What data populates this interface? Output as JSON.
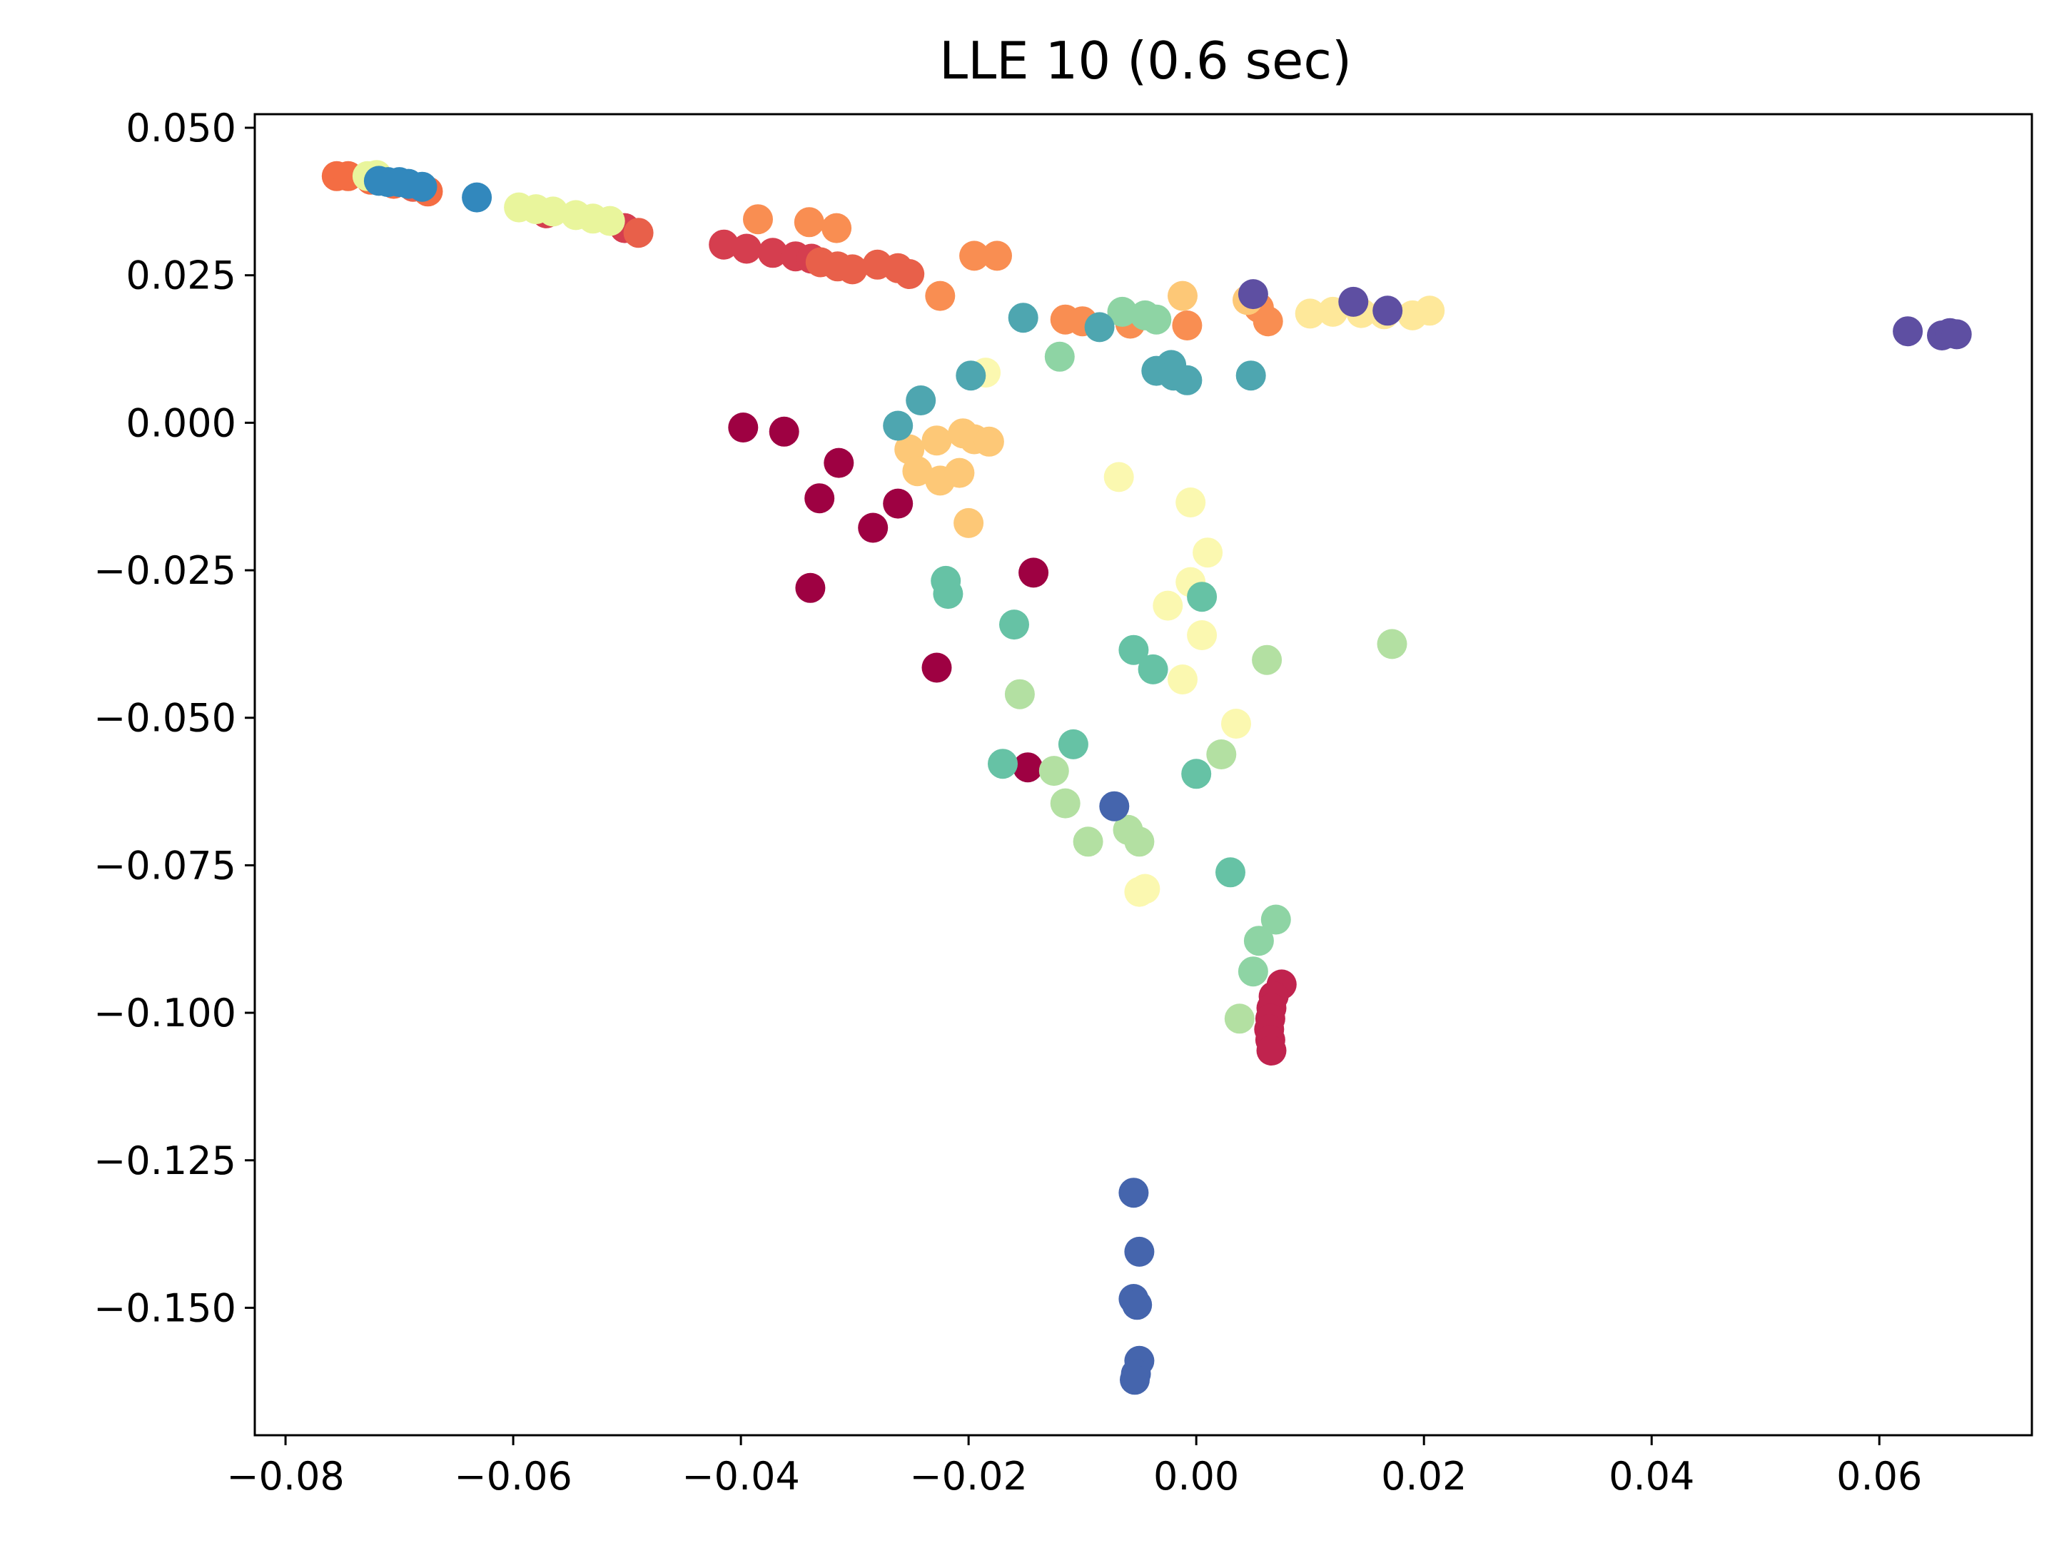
{
  "chart_data": {
    "type": "scatter",
    "title": "LLE 10 (0.6 sec)",
    "xlabel": "",
    "ylabel": "",
    "xlim": [
      -0.0827,
      0.0734
    ],
    "ylim": [
      -0.1716,
      0.0523
    ],
    "grid": false,
    "legend": "none",
    "x_ticks": [
      -0.08,
      -0.06,
      -0.04,
      -0.02,
      0.0,
      0.02,
      0.04,
      0.06
    ],
    "x_tick_labels": [
      "−0.08",
      "−0.06",
      "−0.04",
      "−0.02",
      "0.00",
      "0.02",
      "0.04",
      "0.06"
    ],
    "y_ticks": [
      0.05,
      0.025,
      0.0,
      -0.025,
      -0.05,
      -0.075,
      -0.1,
      -0.125,
      -0.15
    ],
    "y_tick_labels": [
      "0.050",
      "0.025",
      "0.000",
      "−0.025",
      "−0.050",
      "−0.075",
      "−0.100",
      "−0.125",
      "−0.150"
    ],
    "colormap": "Spectral",
    "points": [
      {
        "x": -0.0398,
        "y": -0.0008,
        "color": "#9e0142"
      },
      {
        "x": -0.0362,
        "y": -0.0015,
        "color": "#9e0142"
      },
      {
        "x": -0.0314,
        "y": -0.0068,
        "color": "#9e0142"
      },
      {
        "x": -0.0331,
        "y": -0.0128,
        "color": "#9e0142"
      },
      {
        "x": -0.0262,
        "y": -0.0137,
        "color": "#9e0142"
      },
      {
        "x": -0.0284,
        "y": -0.0178,
        "color": "#9e0142"
      },
      {
        "x": -0.0339,
        "y": -0.028,
        "color": "#9e0142"
      },
      {
        "x": -0.0143,
        "y": -0.0254,
        "color": "#9e0142"
      },
      {
        "x": -0.0228,
        "y": -0.0415,
        "color": "#9e0142"
      },
      {
        "x": -0.0148,
        "y": -0.0584,
        "color": "#9e0142"
      },
      {
        "x": 0.0075,
        "y": -0.0952,
        "color": "#c0234e"
      },
      {
        "x": 0.0068,
        "y": -0.0972,
        "color": "#c0234e"
      },
      {
        "x": 0.0066,
        "y": -0.0992,
        "color": "#c0234e"
      },
      {
        "x": 0.0065,
        "y": -0.101,
        "color": "#c0234e"
      },
      {
        "x": 0.0064,
        "y": -0.1028,
        "color": "#c0234e"
      },
      {
        "x": 0.0065,
        "y": -0.1046,
        "color": "#c0234e"
      },
      {
        "x": 0.0066,
        "y": -0.1064,
        "color": "#c0234e"
      },
      {
        "x": -0.0571,
        "y": 0.0355,
        "color": "#d53e4f"
      },
      {
        "x": -0.0502,
        "y": 0.033,
        "color": "#d53e4f"
      },
      {
        "x": -0.0415,
        "y": 0.0302,
        "color": "#d53e4f"
      },
      {
        "x": -0.0395,
        "y": 0.0295,
        "color": "#d53e4f"
      },
      {
        "x": -0.0372,
        "y": 0.0288,
        "color": "#d53e4f"
      },
      {
        "x": -0.0352,
        "y": 0.0282,
        "color": "#d53e4f"
      },
      {
        "x": -0.0338,
        "y": 0.0278,
        "color": "#d53e4f"
      },
      {
        "x": -0.0688,
        "y": 0.04,
        "color": "#e8604a"
      },
      {
        "x": -0.049,
        "y": 0.0322,
        "color": "#e8604a"
      },
      {
        "x": -0.033,
        "y": 0.0272,
        "color": "#e8604a"
      },
      {
        "x": -0.0315,
        "y": 0.0265,
        "color": "#e8604a"
      },
      {
        "x": -0.0302,
        "y": 0.026,
        "color": "#e8604a"
      },
      {
        "x": -0.028,
        "y": 0.0268,
        "color": "#e8604a"
      },
      {
        "x": -0.0262,
        "y": 0.0262,
        "color": "#e8604a"
      },
      {
        "x": -0.0252,
        "y": 0.0252,
        "color": "#e8604a"
      },
      {
        "x": -0.0755,
        "y": 0.0418,
        "color": "#f46d43"
      },
      {
        "x": -0.0745,
        "y": 0.0418,
        "color": "#f46d43"
      },
      {
        "x": -0.0725,
        "y": 0.0412,
        "color": "#f46d43"
      },
      {
        "x": -0.0705,
        "y": 0.0405,
        "color": "#f46d43"
      },
      {
        "x": -0.0675,
        "y": 0.0392,
        "color": "#f46d43"
      },
      {
        "x": -0.0385,
        "y": 0.0345,
        "color": "#f98e52"
      },
      {
        "x": -0.034,
        "y": 0.034,
        "color": "#f98e52"
      },
      {
        "x": -0.0316,
        "y": 0.033,
        "color": "#f98e52"
      },
      {
        "x": -0.0195,
        "y": 0.0283,
        "color": "#f98e52"
      },
      {
        "x": -0.0175,
        "y": 0.0283,
        "color": "#f98e52"
      },
      {
        "x": -0.0225,
        "y": 0.0215,
        "color": "#f98e52"
      },
      {
        "x": -0.0115,
        "y": 0.0175,
        "color": "#f98e52"
      },
      {
        "x": -0.01,
        "y": 0.0172,
        "color": "#f98e52"
      },
      {
        "x": -0.0058,
        "y": 0.0168,
        "color": "#f98e52"
      },
      {
        "x": -0.0008,
        "y": 0.0165,
        "color": "#f98e52"
      },
      {
        "x": 0.0063,
        "y": 0.0172,
        "color": "#f98e52"
      },
      {
        "x": 0.0055,
        "y": 0.0195,
        "color": "#f98e52"
      },
      {
        "x": -0.0252,
        "y": -0.0045,
        "color": "#fdc877"
      },
      {
        "x": -0.0228,
        "y": -0.003,
        "color": "#fdc877"
      },
      {
        "x": -0.0205,
        "y": -0.0018,
        "color": "#fdc877"
      },
      {
        "x": -0.0195,
        "y": -0.0028,
        "color": "#fdc877"
      },
      {
        "x": -0.0182,
        "y": -0.0032,
        "color": "#fdc877"
      },
      {
        "x": -0.0245,
        "y": -0.0082,
        "color": "#fdc877"
      },
      {
        "x": -0.0225,
        "y": -0.0098,
        "color": "#fdc877"
      },
      {
        "x": -0.0208,
        "y": -0.0085,
        "color": "#fdc877"
      },
      {
        "x": -0.02,
        "y": -0.017,
        "color": "#fdc877"
      },
      {
        "x": -0.0012,
        "y": 0.0215,
        "color": "#fdc877"
      },
      {
        "x": 0.0045,
        "y": 0.0208,
        "color": "#fdc877"
      },
      {
        "x": 0.01,
        "y": 0.0185,
        "color": "#fee89a"
      },
      {
        "x": 0.012,
        "y": 0.0188,
        "color": "#fee89a"
      },
      {
        "x": 0.0145,
        "y": 0.0186,
        "color": "#fee89a"
      },
      {
        "x": 0.0165,
        "y": 0.0184,
        "color": "#fee89a"
      },
      {
        "x": 0.019,
        "y": 0.0182,
        "color": "#fee89a"
      },
      {
        "x": 0.0205,
        "y": 0.019,
        "color": "#fee89a"
      },
      {
        "x": -0.0185,
        "y": 0.0085,
        "color": "#fbf8b0"
      },
      {
        "x": -0.0068,
        "y": -0.0092,
        "color": "#fbf8b0"
      },
      {
        "x": -0.0005,
        "y": -0.0135,
        "color": "#fbf8b0"
      },
      {
        "x": 0.001,
        "y": -0.022,
        "color": "#fbf8b0"
      },
      {
        "x": -0.0005,
        "y": -0.027,
        "color": "#fbf8b0"
      },
      {
        "x": -0.0025,
        "y": -0.031,
        "color": "#fbf8b0"
      },
      {
        "x": 0.0005,
        "y": -0.036,
        "color": "#fbf8b0"
      },
      {
        "x": -0.0012,
        "y": -0.0435,
        "color": "#fbf8b0"
      },
      {
        "x": 0.0035,
        "y": -0.051,
        "color": "#fbf8b0"
      },
      {
        "x": -0.0045,
        "y": -0.079,
        "color": "#fbf8b0"
      },
      {
        "x": -0.005,
        "y": -0.0795,
        "color": "#fbf8b0"
      },
      {
        "x": -0.0595,
        "y": 0.0365,
        "color": "#e9f59c"
      },
      {
        "x": -0.058,
        "y": 0.0362,
        "color": "#e9f59c"
      },
      {
        "x": -0.0565,
        "y": 0.0358,
        "color": "#e9f59c"
      },
      {
        "x": -0.0545,
        "y": 0.0352,
        "color": "#e9f59c"
      },
      {
        "x": -0.053,
        "y": 0.0346,
        "color": "#e9f59c"
      },
      {
        "x": -0.0515,
        "y": 0.0342,
        "color": "#e9f59c"
      },
      {
        "x": -0.0728,
        "y": 0.0418,
        "color": "#e9f59c"
      },
      {
        "x": -0.072,
        "y": 0.042,
        "color": "#e9f59c"
      },
      {
        "x": -0.0155,
        "y": -0.046,
        "color": "#b3e0a2"
      },
      {
        "x": -0.0125,
        "y": -0.059,
        "color": "#b3e0a2"
      },
      {
        "x": -0.0115,
        "y": -0.0645,
        "color": "#b3e0a2"
      },
      {
        "x": -0.0095,
        "y": -0.071,
        "color": "#b3e0a2"
      },
      {
        "x": -0.006,
        "y": -0.069,
        "color": "#b3e0a2"
      },
      {
        "x": -0.005,
        "y": -0.071,
        "color": "#b3e0a2"
      },
      {
        "x": 0.0022,
        "y": -0.0562,
        "color": "#b3e0a2"
      },
      {
        "x": 0.0062,
        "y": -0.0402,
        "color": "#b3e0a2"
      },
      {
        "x": 0.0172,
        "y": -0.0375,
        "color": "#b3e0a2"
      },
      {
        "x": 0.0038,
        "y": -0.101,
        "color": "#b3e0a2"
      },
      {
        "x": -0.012,
        "y": 0.0112,
        "color": "#8ed4a4"
      },
      {
        "x": -0.0065,
        "y": 0.0188,
        "color": "#8ed4a4"
      },
      {
        "x": -0.0045,
        "y": 0.0182,
        "color": "#8ed4a4"
      },
      {
        "x": -0.0035,
        "y": 0.0175,
        "color": "#8ed4a4"
      },
      {
        "x": 0.007,
        "y": -0.0842,
        "color": "#8ed4a4"
      },
      {
        "x": 0.0055,
        "y": -0.0878,
        "color": "#8ed4a4"
      },
      {
        "x": 0.005,
        "y": -0.093,
        "color": "#8ed4a4"
      },
      {
        "x": -0.022,
        "y": -0.0268,
        "color": "#66c2a5"
      },
      {
        "x": -0.0218,
        "y": -0.029,
        "color": "#66c2a5"
      },
      {
        "x": -0.016,
        "y": -0.0342,
        "color": "#66c2a5"
      },
      {
        "x": -0.0055,
        "y": -0.0385,
        "color": "#66c2a5"
      },
      {
        "x": -0.0038,
        "y": -0.0418,
        "color": "#66c2a5"
      },
      {
        "x": 0.0005,
        "y": -0.0295,
        "color": "#66c2a5"
      },
      {
        "x": -0.017,
        "y": -0.0578,
        "color": "#66c2a5"
      },
      {
        "x": -0.0108,
        "y": -0.0545,
        "color": "#66c2a5"
      },
      {
        "x": 0.0,
        "y": -0.0595,
        "color": "#66c2a5"
      },
      {
        "x": 0.003,
        "y": -0.0762,
        "color": "#66c2a5"
      },
      {
        "x": -0.0152,
        "y": 0.0178,
        "color": "#4ea6b0"
      },
      {
        "x": -0.0085,
        "y": 0.0162,
        "color": "#4ea6b0"
      },
      {
        "x": -0.0198,
        "y": 0.008,
        "color": "#4ea6b0"
      },
      {
        "x": -0.0242,
        "y": 0.0038,
        "color": "#4ea6b0"
      },
      {
        "x": -0.0262,
        "y": -0.0005,
        "color": "#4ea6b0"
      },
      {
        "x": -0.0035,
        "y": 0.0088,
        "color": "#4ea6b0"
      },
      {
        "x": -0.0022,
        "y": 0.0098,
        "color": "#4ea6b0"
      },
      {
        "x": -0.002,
        "y": 0.008,
        "color": "#4ea6b0"
      },
      {
        "x": -0.0008,
        "y": 0.0072,
        "color": "#4ea6b0"
      },
      {
        "x": 0.0048,
        "y": 0.008,
        "color": "#4ea6b0"
      },
      {
        "x": -0.0718,
        "y": 0.041,
        "color": "#3288bd"
      },
      {
        "x": -0.071,
        "y": 0.0408,
        "color": "#3288bd"
      },
      {
        "x": -0.07,
        "y": 0.0408,
        "color": "#3288bd"
      },
      {
        "x": -0.0692,
        "y": 0.0405,
        "color": "#3288bd"
      },
      {
        "x": -0.068,
        "y": 0.04,
        "color": "#3288bd"
      },
      {
        "x": -0.0632,
        "y": 0.0382,
        "color": "#3288bd"
      },
      {
        "x": -0.0072,
        "y": -0.065,
        "color": "#4565ad"
      },
      {
        "x": -0.0055,
        "y": -0.1305,
        "color": "#4565ad"
      },
      {
        "x": -0.005,
        "y": -0.1405,
        "color": "#4565ad"
      },
      {
        "x": -0.0055,
        "y": -0.1485,
        "color": "#4565ad"
      },
      {
        "x": -0.0052,
        "y": -0.1495,
        "color": "#4565ad"
      },
      {
        "x": -0.005,
        "y": -0.159,
        "color": "#4565ad"
      },
      {
        "x": -0.0053,
        "y": -0.1612,
        "color": "#4565ad"
      },
      {
        "x": -0.0054,
        "y": -0.1622,
        "color": "#4565ad"
      },
      {
        "x": 0.005,
        "y": 0.0218,
        "color": "#5e4fa2"
      },
      {
        "x": 0.0138,
        "y": 0.0205,
        "color": "#5e4fa2"
      },
      {
        "x": 0.0168,
        "y": 0.019,
        "color": "#5e4fa2"
      },
      {
        "x": 0.0625,
        "y": 0.0155,
        "color": "#5e4fa2"
      },
      {
        "x": 0.0655,
        "y": 0.0148,
        "color": "#5e4fa2"
      },
      {
        "x": 0.0662,
        "y": 0.0152,
        "color": "#5e4fa2"
      },
      {
        "x": 0.0668,
        "y": 0.015,
        "color": "#5e4fa2"
      }
    ]
  }
}
